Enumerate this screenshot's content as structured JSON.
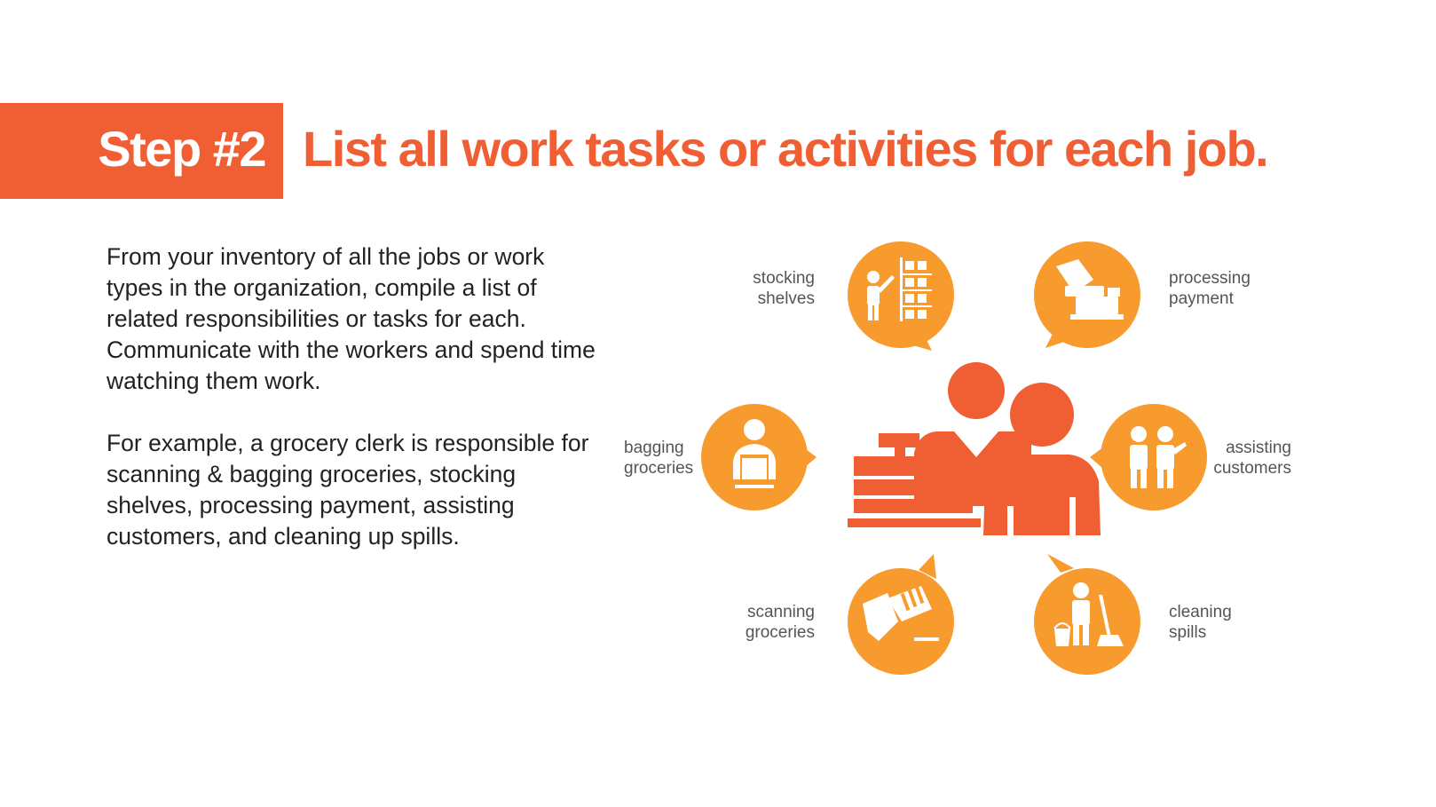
{
  "header": {
    "step_label": "Step #2",
    "title": "List all work tasks or activities for each job."
  },
  "body": {
    "paragraph1": "From your inventory of all the jobs or work types in the organization, compile a list of related responsibilities or tasks for each. Communicate with the workers and spend time watching them work.",
    "paragraph2": "For example, a grocery clerk is responsible for scanning & bagging groceries, stocking shelves, processing payment, assisting customers, and cleaning up spills."
  },
  "diagram": {
    "center_icon": "grocery-clerk-at-register-icon",
    "tasks": [
      {
        "label": "stocking\nshelves",
        "icon": "stocking-shelves-icon"
      },
      {
        "label": "processing\npayment",
        "icon": "processing-payment-icon"
      },
      {
        "label": "bagging\ngroceries",
        "icon": "bagging-groceries-icon"
      },
      {
        "label": "assisting\ncustomers",
        "icon": "assisting-customers-icon"
      },
      {
        "label": "scanning\ngroceries",
        "icon": "scanning-groceries-icon"
      },
      {
        "label": "cleaning\nspills",
        "icon": "cleaning-spills-icon"
      }
    ]
  },
  "colors": {
    "accent": "#f05f33",
    "bubble": "#f79b2e",
    "text": "#222222",
    "label": "#555555"
  }
}
